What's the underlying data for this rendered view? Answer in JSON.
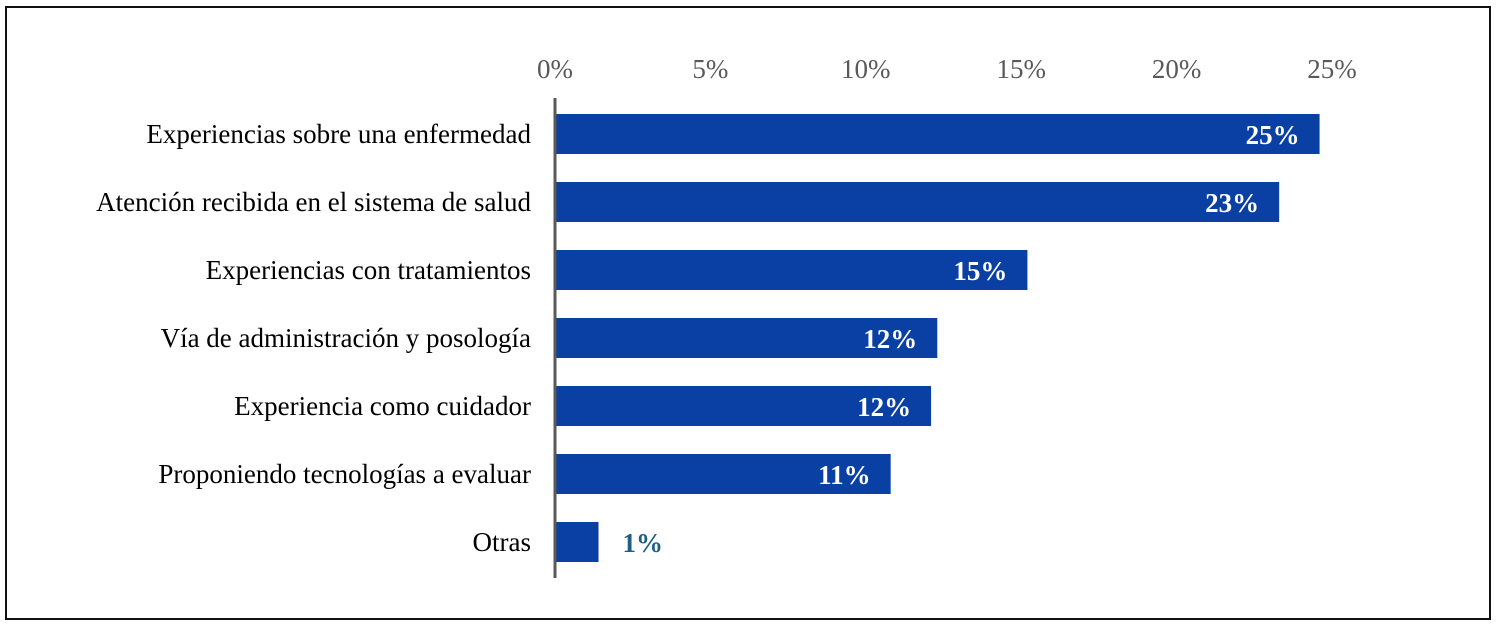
{
  "chart_data": {
    "type": "bar",
    "orientation": "horizontal",
    "title": "",
    "xlabel": "",
    "ylabel": "",
    "xlim": [
      0,
      25
    ],
    "tick_labels": [
      "0%",
      "5%",
      "10%",
      "15%",
      "20%",
      "25%"
    ],
    "tick_values": [
      0,
      5,
      10,
      15,
      20,
      25
    ],
    "categories": [
      "Experiencias sobre una enfermedad",
      "Atención recibida en el sistema de salud",
      "Experiencias con tratamientos",
      "Vía de administración y posología",
      "Experiencia como cuidador",
      "Proponiendo tecnologías a evaluar",
      "Otras"
    ],
    "values": [
      24.6,
      23.3,
      15.2,
      12.3,
      12.1,
      10.8,
      1.4
    ],
    "data_labels": [
      "25%",
      "23%",
      "15%",
      "12%",
      "12%",
      "11%",
      "1%"
    ],
    "bar_color": "#0a3fa3",
    "label_color_inside": "#ffffff",
    "label_color_outside": "#1f5f86",
    "axis_color": "#595959",
    "tick_color": "#595959",
    "text_color": "#000000",
    "grid": false,
    "legend": "none"
  }
}
